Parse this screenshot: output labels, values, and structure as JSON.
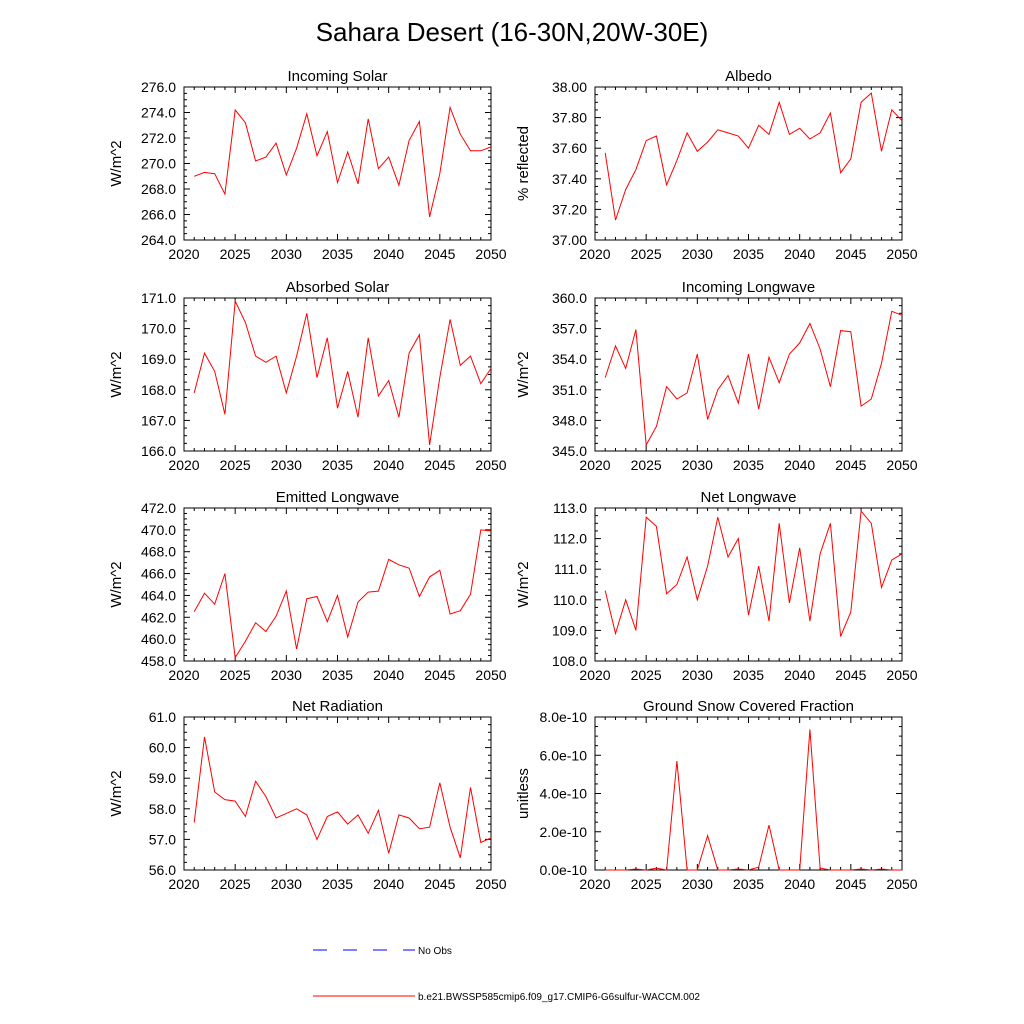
{
  "title": "Sahara Desert (16-30N,20W-30E)",
  "colors": {
    "model_line": "#ff0000",
    "obs_line": "#0000ff",
    "axes": "#000000"
  },
  "legend": [
    {
      "label": "No Obs",
      "color": "#0000ff",
      "style": "dashed"
    },
    {
      "label": "b.e21.BWSSP585cmip6.f09_g17.CMIP6-G6sulfur-WACCM.002",
      "color": "#ff0000",
      "style": "solid"
    }
  ],
  "chart_data": [
    {
      "type": "line",
      "title": "Incoming Solar",
      "ylabel": "W/m^2",
      "xlim": [
        2020,
        2050
      ],
      "ylim": [
        264,
        276
      ],
      "xticks": [
        "2020",
        "2025",
        "2030",
        "2035",
        "2040",
        "2045",
        "2050"
      ],
      "yticks": [
        "264.0",
        "266.0",
        "268.0",
        "270.0",
        "272.0",
        "274.0",
        "276.0"
      ],
      "x": [
        2021,
        2022,
        2023,
        2024,
        2025,
        2026,
        2027,
        2028,
        2029,
        2030,
        2031,
        2032,
        2033,
        2034,
        2035,
        2036,
        2037,
        2038,
        2039,
        2040,
        2041,
        2042,
        2043,
        2044,
        2045,
        2046,
        2047,
        2048,
        2049,
        2050
      ],
      "series": [
        {
          "values": [
            269.0,
            269.3,
            269.2,
            267.6,
            274.2,
            273.2,
            270.2,
            270.5,
            271.6,
            269.1,
            271.2,
            273.9,
            270.6,
            272.5,
            268.5,
            270.9,
            268.4,
            273.5,
            269.6,
            270.5,
            268.3,
            271.8,
            273.3,
            265.8,
            269.2,
            274.4,
            272.3,
            271.0,
            271.0,
            271.3
          ]
        }
      ]
    },
    {
      "type": "line",
      "title": "Albedo",
      "ylabel": "% reflected",
      "xlim": [
        2020,
        2050
      ],
      "ylim": [
        37.0,
        38.0
      ],
      "xticks": [
        "2020",
        "2025",
        "2030",
        "2035",
        "2040",
        "2045",
        "2050"
      ],
      "yticks": [
        "37.00",
        "37.20",
        "37.40",
        "37.60",
        "37.80",
        "38.00"
      ],
      "x": [
        2021,
        2022,
        2023,
        2024,
        2025,
        2026,
        2027,
        2028,
        2029,
        2030,
        2031,
        2032,
        2033,
        2034,
        2035,
        2036,
        2037,
        2038,
        2039,
        2040,
        2041,
        2042,
        2043,
        2044,
        2045,
        2046,
        2047,
        2048,
        2049,
        2050
      ],
      "series": [
        {
          "values": [
            37.57,
            37.13,
            37.33,
            37.46,
            37.65,
            37.68,
            37.36,
            37.52,
            37.7,
            37.58,
            37.64,
            37.72,
            37.7,
            37.68,
            37.6,
            37.75,
            37.69,
            37.9,
            37.69,
            37.73,
            37.66,
            37.7,
            37.83,
            37.44,
            37.53,
            37.9,
            37.96,
            37.58,
            37.85,
            37.78
          ]
        }
      ]
    },
    {
      "type": "line",
      "title": "Absorbed Solar",
      "ylabel": "W/m^2",
      "xlim": [
        2020,
        2050
      ],
      "ylim": [
        166.0,
        171.0
      ],
      "xticks": [
        "2020",
        "2025",
        "2030",
        "2035",
        "2040",
        "2045",
        "2050"
      ],
      "yticks": [
        "166.0",
        "167.0",
        "168.0",
        "169.0",
        "170.0",
        "171.0"
      ],
      "x": [
        2021,
        2022,
        2023,
        2024,
        2025,
        2026,
        2027,
        2028,
        2029,
        2030,
        2031,
        2032,
        2033,
        2034,
        2035,
        2036,
        2037,
        2038,
        2039,
        2040,
        2041,
        2042,
        2043,
        2044,
        2045,
        2046,
        2047,
        2048,
        2049,
        2050
      ],
      "series": [
        {
          "values": [
            167.9,
            169.2,
            168.6,
            167.2,
            170.9,
            170.2,
            169.1,
            168.9,
            169.1,
            167.9,
            169.1,
            170.5,
            168.4,
            169.7,
            167.4,
            168.6,
            167.1,
            169.7,
            167.8,
            168.3,
            167.1,
            169.2,
            169.8,
            166.2,
            168.4,
            170.3,
            168.8,
            169.1,
            168.2,
            168.7
          ]
        }
      ]
    },
    {
      "type": "line",
      "title": "Incoming Longwave",
      "ylabel": "W/m^2",
      "xlim": [
        2020,
        2050
      ],
      "ylim": [
        345.0,
        360.0
      ],
      "xticks": [
        "2020",
        "2025",
        "2030",
        "2035",
        "2040",
        "2045",
        "2050"
      ],
      "yticks": [
        "345.0",
        "348.0",
        "351.0",
        "354.0",
        "357.0",
        "360.0"
      ],
      "x": [
        2021,
        2022,
        2023,
        2024,
        2025,
        2026,
        2027,
        2028,
        2029,
        2030,
        2031,
        2032,
        2033,
        2034,
        2035,
        2036,
        2037,
        2038,
        2039,
        2040,
        2041,
        2042,
        2043,
        2044,
        2045,
        2046,
        2047,
        2048,
        2049,
        2050
      ],
      "series": [
        {
          "values": [
            352.2,
            355.3,
            353.1,
            356.9,
            345.6,
            347.4,
            351.3,
            350.1,
            350.7,
            354.5,
            348.1,
            351.0,
            352.4,
            349.7,
            354.5,
            349.1,
            354.2,
            351.7,
            354.5,
            355.6,
            357.5,
            355.0,
            351.3,
            356.8,
            356.7,
            349.4,
            350.1,
            353.6,
            358.7,
            358.3
          ]
        }
      ]
    },
    {
      "type": "line",
      "title": "Emitted Longwave",
      "ylabel": "W/m^2",
      "xlim": [
        2020,
        2050
      ],
      "ylim": [
        458.0,
        472.0
      ],
      "xticks": [
        "2020",
        "2025",
        "2030",
        "2035",
        "2040",
        "2045",
        "2050"
      ],
      "yticks": [
        "458.0",
        "460.0",
        "462.0",
        "464.0",
        "466.0",
        "468.0",
        "470.0",
        "472.0"
      ],
      "x": [
        2021,
        2022,
        2023,
        2024,
        2025,
        2026,
        2027,
        2028,
        2029,
        2030,
        2031,
        2032,
        2033,
        2034,
        2035,
        2036,
        2037,
        2038,
        2039,
        2040,
        2041,
        2042,
        2043,
        2044,
        2045,
        2046,
        2047,
        2048,
        2049,
        2050
      ],
      "series": [
        {
          "values": [
            462.5,
            464.2,
            463.2,
            466.0,
            458.3,
            459.8,
            461.5,
            460.7,
            462.1,
            464.4,
            459.1,
            463.7,
            463.9,
            461.6,
            464.0,
            460.2,
            463.4,
            464.3,
            464.4,
            467.3,
            466.8,
            466.5,
            463.9,
            465.7,
            466.3,
            462.3,
            462.6,
            464.1,
            470.0,
            469.9
          ]
        }
      ]
    },
    {
      "type": "line",
      "title": "Net Longwave",
      "ylabel": "W/m^2",
      "xlim": [
        2020,
        2050
      ],
      "ylim": [
        108.0,
        113.0
      ],
      "xticks": [
        "2020",
        "2025",
        "2030",
        "2035",
        "2040",
        "2045",
        "2050"
      ],
      "yticks": [
        "108.0",
        "109.0",
        "110.0",
        "111.0",
        "112.0",
        "113.0"
      ],
      "x": [
        2021,
        2022,
        2023,
        2024,
        2025,
        2026,
        2027,
        2028,
        2029,
        2030,
        2031,
        2032,
        2033,
        2034,
        2035,
        2036,
        2037,
        2038,
        2039,
        2040,
        2041,
        2042,
        2043,
        2044,
        2045,
        2046,
        2047,
        2048,
        2049,
        2050
      ],
      "series": [
        {
          "values": [
            110.3,
            108.9,
            110.0,
            109.0,
            112.7,
            112.4,
            110.2,
            110.5,
            111.4,
            110.0,
            111.1,
            112.7,
            111.4,
            112.0,
            109.5,
            111.1,
            109.3,
            112.5,
            109.9,
            111.7,
            109.3,
            111.5,
            112.5,
            108.8,
            109.6,
            112.9,
            112.5,
            110.4,
            111.3,
            111.5
          ]
        }
      ]
    },
    {
      "type": "line",
      "title": "Net Radiation",
      "ylabel": "W/m^2",
      "xlim": [
        2020,
        2050
      ],
      "ylim": [
        56.0,
        61.0
      ],
      "xticks": [
        "2020",
        "2025",
        "2030",
        "2035",
        "2040",
        "2045",
        "2050"
      ],
      "yticks": [
        "56.0",
        "57.0",
        "58.0",
        "59.0",
        "60.0",
        "61.0"
      ],
      "x": [
        2021,
        2022,
        2023,
        2024,
        2025,
        2026,
        2027,
        2028,
        2029,
        2030,
        2031,
        2032,
        2033,
        2034,
        2035,
        2036,
        2037,
        2038,
        2039,
        2040,
        2041,
        2042,
        2043,
        2044,
        2045,
        2046,
        2047,
        2048,
        2049,
        2050
      ],
      "series": [
        {
          "values": [
            57.55,
            60.35,
            58.55,
            58.3,
            58.25,
            57.75,
            58.9,
            58.4,
            57.7,
            57.85,
            58.0,
            57.8,
            57.0,
            57.75,
            57.9,
            57.5,
            57.8,
            57.2,
            57.95,
            56.55,
            57.8,
            57.7,
            57.35,
            57.4,
            58.85,
            57.4,
            56.4,
            58.7,
            56.9,
            57.05
          ]
        }
      ]
    },
    {
      "type": "line",
      "title": "Ground Snow Covered Fraction",
      "ylabel": "unitless",
      "xlim": [
        2020,
        2050
      ],
      "ylim": [
        0,
        8e-10
      ],
      "xticks": [
        "2020",
        "2025",
        "2030",
        "2035",
        "2040",
        "2045",
        "2050"
      ],
      "yticks": [
        "0.0e-10",
        "2.0e-10",
        "4.0e-10",
        "6.0e-10",
        "8.0e-10"
      ],
      "x": [
        2021,
        2022,
        2023,
        2024,
        2025,
        2026,
        2027,
        2028,
        2029,
        2030,
        2031,
        2032,
        2033,
        2034,
        2035,
        2036,
        2037,
        2038,
        2039,
        2040,
        2041,
        2042,
        2043,
        2044,
        2045,
        2046,
        2047,
        2048,
        2049,
        2050
      ],
      "series": [
        {
          "values": [
            0,
            0,
            0,
            5e-12,
            0,
            1e-11,
            0,
            5.7e-10,
            0,
            0,
            1.8e-10,
            0,
            0,
            5e-12,
            0,
            1.5e-11,
            2.35e-10,
            0,
            0,
            0,
            7.35e-10,
            1e-11,
            0,
            0,
            0,
            5e-12,
            0,
            5e-12,
            0,
            0
          ]
        }
      ]
    }
  ]
}
